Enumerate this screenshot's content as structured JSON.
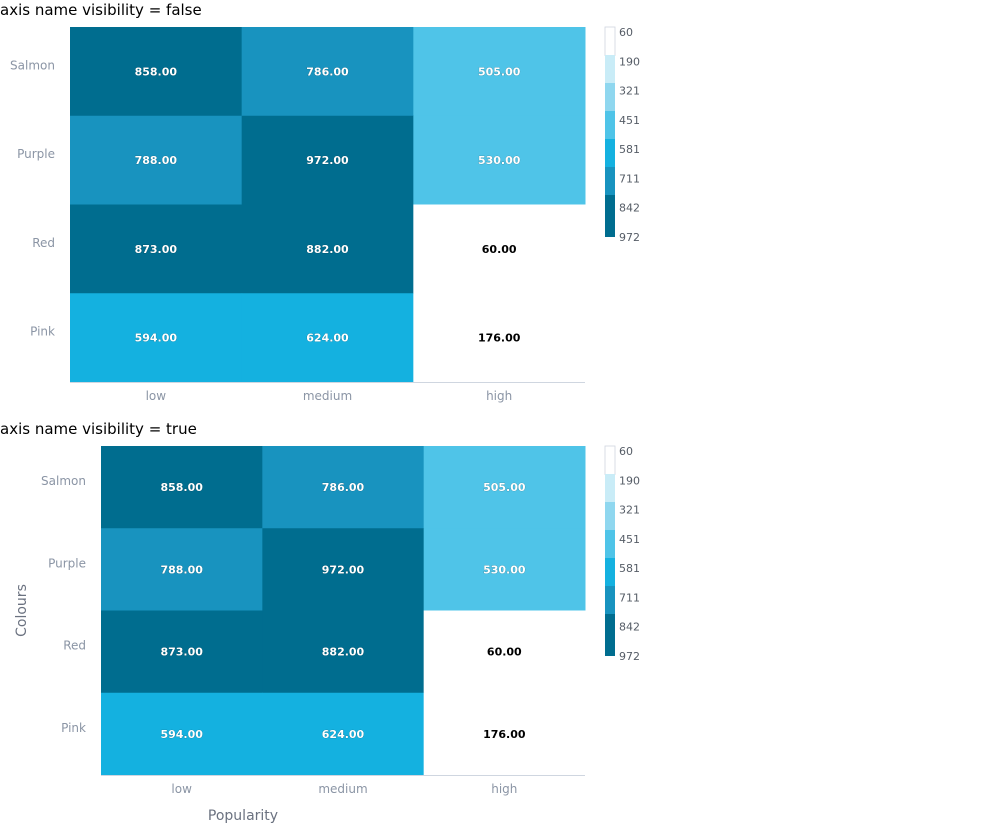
{
  "chart_data": [
    {
      "type": "heatmap",
      "title": "axis name visibility = false",
      "x_categories": [
        "low",
        "medium",
        "high"
      ],
      "y_categories": [
        "Salmon",
        "Purple",
        "Red",
        "Pink"
      ],
      "values": [
        [
          858,
          786,
          505
        ],
        [
          788,
          972,
          530
        ],
        [
          873,
          882,
          60
        ],
        [
          594,
          624,
          176
        ]
      ],
      "value_format": "2 decimals",
      "xlabel": "",
      "ylabel": "",
      "color_scale": {
        "min": 60,
        "max": 972,
        "ticks": [
          "60",
          "190",
          "321",
          "451",
          "581",
          "711",
          "842",
          "972"
        ],
        "colors": [
          "#ffffff",
          "#c9ecf7",
          "#8fd7ef",
          "#4fc4e8",
          "#14b1e0",
          "#1893bf",
          "#006d8f"
        ]
      },
      "legend_position": "right"
    },
    {
      "type": "heatmap",
      "title": "axis name visibility = true",
      "x_categories": [
        "low",
        "medium",
        "high"
      ],
      "y_categories": [
        "Salmon",
        "Purple",
        "Red",
        "Pink"
      ],
      "values": [
        [
          858,
          786,
          505
        ],
        [
          788,
          972,
          530
        ],
        [
          873,
          882,
          60
        ],
        [
          594,
          624,
          176
        ]
      ],
      "value_format": "2 decimals",
      "xlabel": "Popularity",
      "ylabel": "Colours",
      "color_scale": {
        "min": 60,
        "max": 972,
        "ticks": [
          "60",
          "190",
          "321",
          "451",
          "581",
          "711",
          "842",
          "972"
        ],
        "colors": [
          "#ffffff",
          "#c9ecf7",
          "#8fd7ef",
          "#4fc4e8",
          "#14b1e0",
          "#1893bf",
          "#006d8f"
        ]
      },
      "legend_position": "right"
    }
  ]
}
